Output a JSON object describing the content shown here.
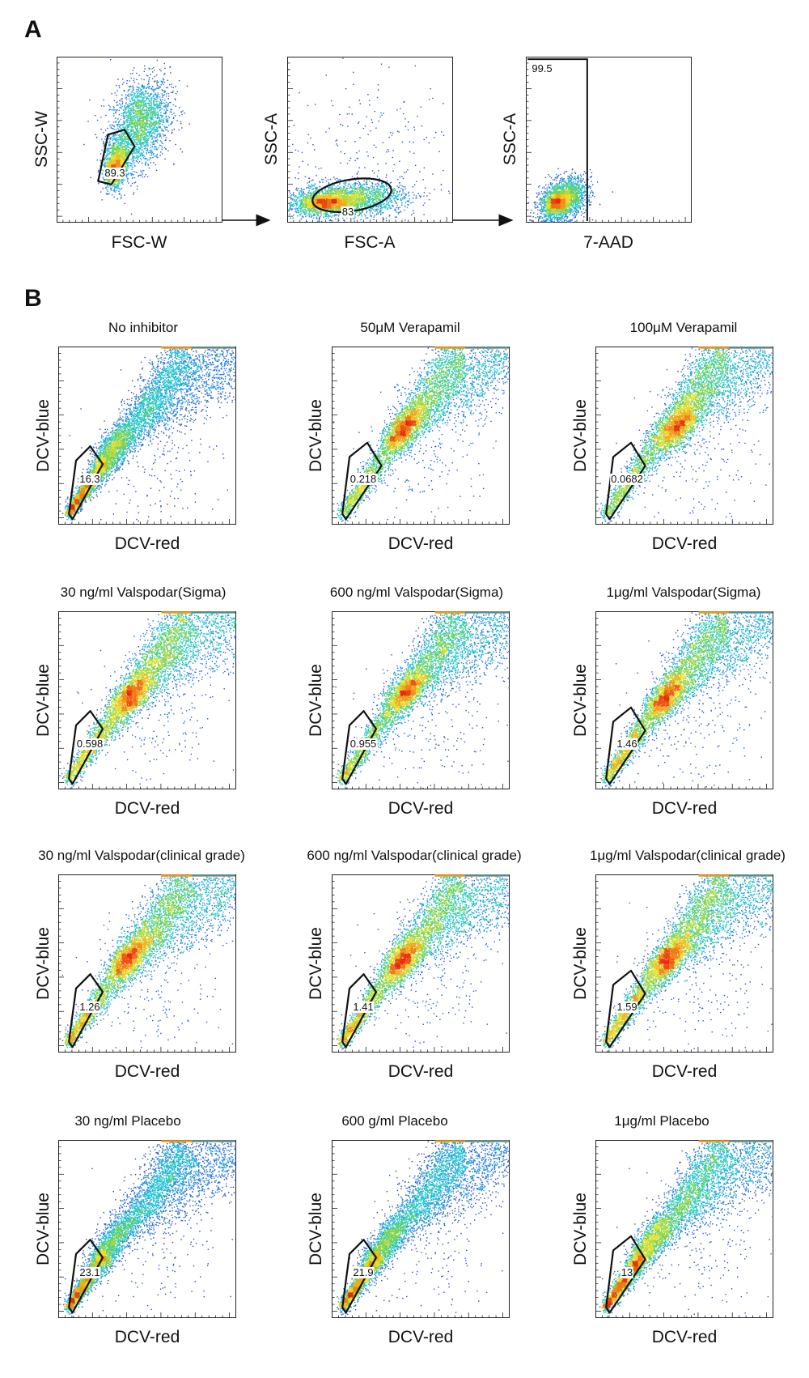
{
  "panels": [
    {
      "letter": "A"
    },
    {
      "letter": "B"
    }
  ],
  "chart_data": [
    {
      "type": "scatter",
      "panel": "A",
      "subtitle": "",
      "xlabel": "FSC-W",
      "ylabel": "SSC-W",
      "gate": {
        "shape": "polygon",
        "value": "89.3"
      }
    },
    {
      "type": "scatter",
      "panel": "A",
      "subtitle": "",
      "xlabel": "FSC-A",
      "ylabel": "SSC-A",
      "gate": {
        "shape": "ellipse",
        "value": "83"
      }
    },
    {
      "type": "scatter",
      "panel": "A",
      "subtitle": "",
      "xlabel": "7-AAD",
      "ylabel": "SSC-A",
      "gate": {
        "shape": "rectangle",
        "value": "99.5"
      }
    },
    {
      "type": "scatter",
      "panel": "B",
      "subtitle": "No inhibitor",
      "xlabel": "DCV-red",
      "ylabel": "DCV-blue",
      "gate": {
        "shape": "polygon",
        "value": "16.3"
      }
    },
    {
      "type": "scatter",
      "panel": "B",
      "subtitle": "50μM Verapamil",
      "xlabel": "DCV-red",
      "ylabel": "DCV-blue",
      "gate": {
        "shape": "polygon",
        "value": "0.218"
      }
    },
    {
      "type": "scatter",
      "panel": "B",
      "subtitle": "100μM Verapamil",
      "xlabel": "DCV-red",
      "ylabel": "DCV-blue",
      "gate": {
        "shape": "polygon",
        "value": "0.0682"
      }
    },
    {
      "type": "scatter",
      "panel": "B",
      "subtitle": "30 ng/ml Valspodar(Sigma)",
      "xlabel": "DCV-red",
      "ylabel": "DCV-blue",
      "gate": {
        "shape": "polygon",
        "value": "0.598"
      }
    },
    {
      "type": "scatter",
      "panel": "B",
      "subtitle": "600 ng/ml Valspodar(Sigma)",
      "xlabel": "DCV-red",
      "ylabel": "DCV-blue",
      "gate": {
        "shape": "polygon",
        "value": "0.955"
      }
    },
    {
      "type": "scatter",
      "panel": "B",
      "subtitle": "1μg/ml Valspodar(Sigma)",
      "xlabel": "DCV-red",
      "ylabel": "DCV-blue",
      "gate": {
        "shape": "polygon",
        "value": "1.46"
      }
    },
    {
      "type": "scatter",
      "panel": "B",
      "subtitle": "30 ng/ml Valspodar(clinical grade)",
      "xlabel": "DCV-red",
      "ylabel": "DCV-blue",
      "gate": {
        "shape": "polygon",
        "value": "1.26"
      }
    },
    {
      "type": "scatter",
      "panel": "B",
      "subtitle": "600 ng/ml Valspodar(clinical grade)",
      "xlabel": "DCV-red",
      "ylabel": "DCV-blue",
      "gate": {
        "shape": "polygon",
        "value": "1.41"
      }
    },
    {
      "type": "scatter",
      "panel": "B",
      "subtitle": "1μg/ml Valspodar(clinical grade)",
      "xlabel": "DCV-red",
      "ylabel": "DCV-blue",
      "gate": {
        "shape": "polygon",
        "value": "1.59"
      }
    },
    {
      "type": "scatter",
      "panel": "B",
      "subtitle": "30 ng/ml Placebo",
      "xlabel": "DCV-red",
      "ylabel": "DCV-blue",
      "gate": {
        "shape": "polygon",
        "value": "23.1"
      }
    },
    {
      "type": "scatter",
      "panel": "B",
      "subtitle": "600 g/ml Placebo",
      "xlabel": "DCV-red",
      "ylabel": "DCV-blue",
      "gate": {
        "shape": "polygon",
        "value": "21.9"
      }
    },
    {
      "type": "scatter",
      "panel": "B",
      "subtitle": "1μg/ml Placebo",
      "xlabel": "DCV-red",
      "ylabel": "DCV-blue",
      "gate": {
        "shape": "polygon",
        "value": "13"
      }
    }
  ],
  "colors": {
    "density_low": "#2a2aa8",
    "density_mid": "#19c6d2",
    "density_high": "#e82a10",
    "gate_stroke": "#111111"
  }
}
